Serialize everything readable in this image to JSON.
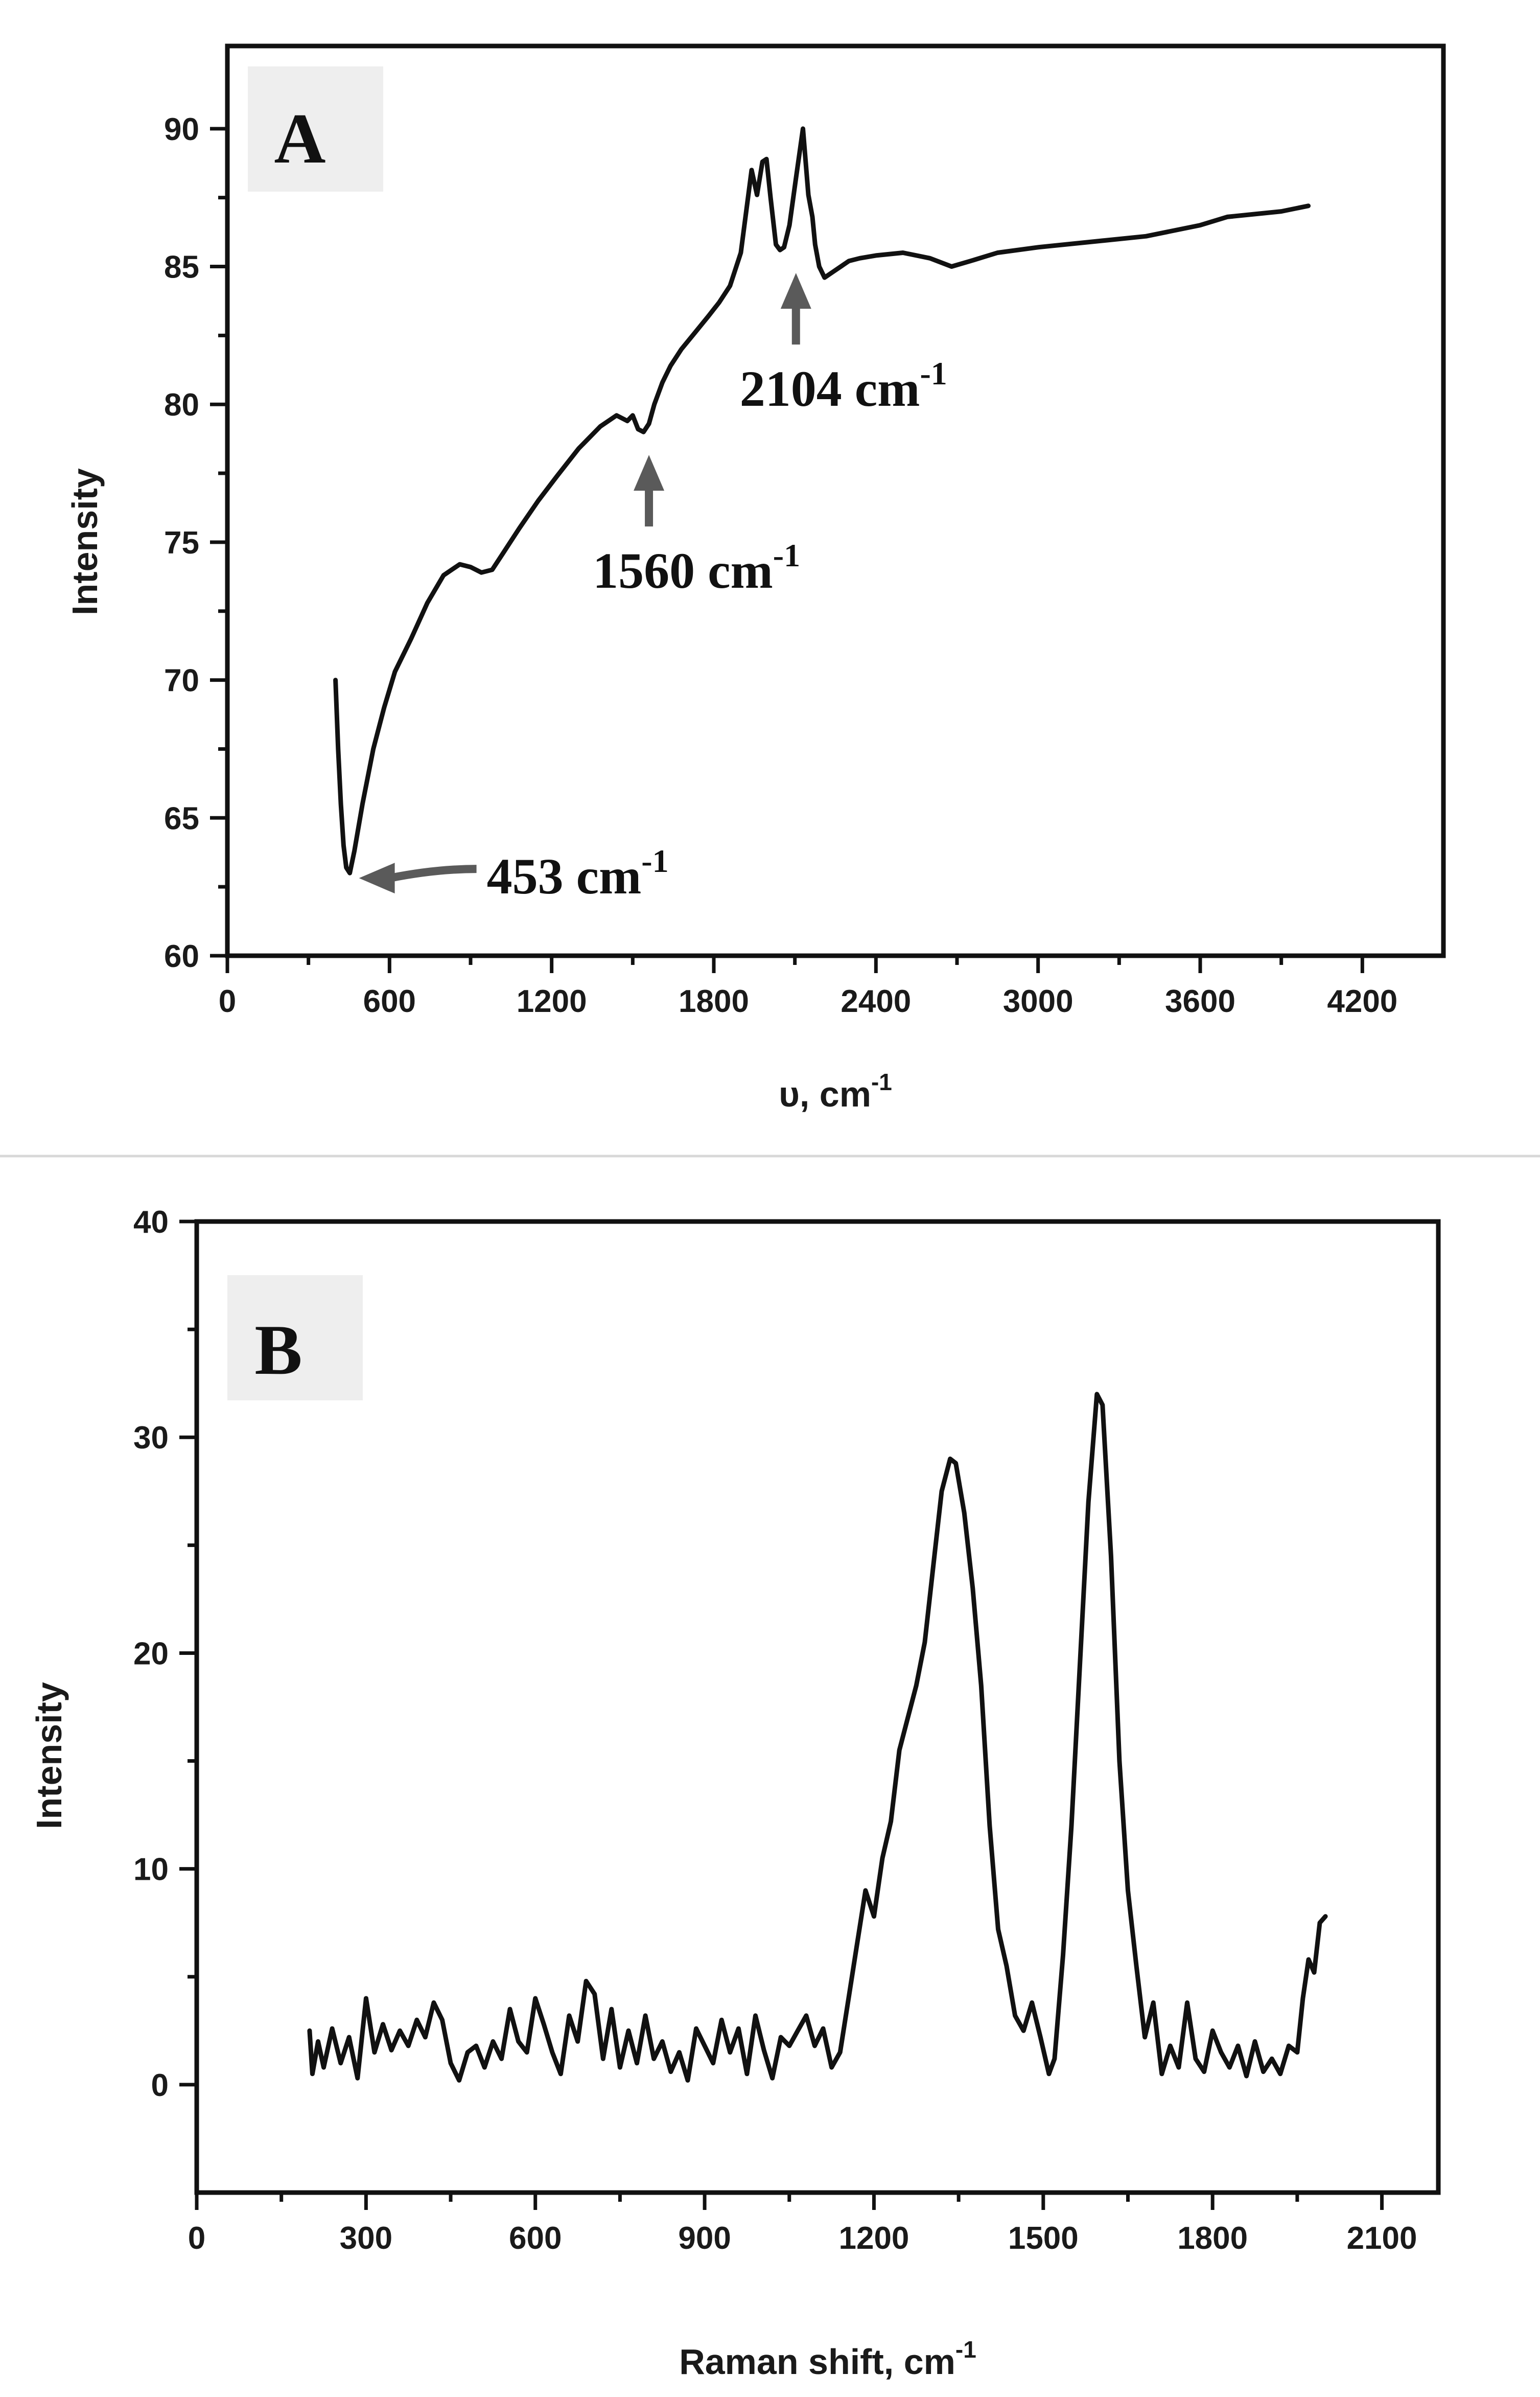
{
  "chart_data": [
    {
      "panel": "A",
      "type": "line",
      "xlabel": "υ, cm",
      "xlabel_sup": "-1",
      "ylabel": "Intensity",
      "xlim": [
        0,
        4500
      ],
      "ylim": [
        60,
        93
      ],
      "xticks": [
        0,
        600,
        1200,
        1800,
        2400,
        3000,
        3600,
        4200
      ],
      "yticks": [
        60,
        65,
        70,
        75,
        80,
        85,
        90
      ],
      "grid": false,
      "x": [
        400,
        410,
        420,
        430,
        440,
        453,
        470,
        500,
        540,
        580,
        620,
        680,
        740,
        800,
        860,
        900,
        940,
        980,
        1020,
        1080,
        1150,
        1220,
        1300,
        1380,
        1440,
        1480,
        1500,
        1520,
        1540,
        1560,
        1580,
        1610,
        1640,
        1680,
        1730,
        1780,
        1820,
        1860,
        1900,
        1940,
        1960,
        1980,
        1995,
        2010,
        2030,
        2045,
        2060,
        2080,
        2104,
        2130,
        2150,
        2165,
        2175,
        2190,
        2210,
        2240,
        2270,
        2300,
        2340,
        2400,
        2500,
        2600,
        2680,
        2750,
        2850,
        3000,
        3200,
        3400,
        3600,
        3700,
        3800,
        3900,
        4000
      ],
      "y": [
        70.0,
        67.5,
        65.5,
        64.0,
        63.2,
        63.0,
        63.8,
        65.5,
        67.5,
        69.0,
        70.3,
        71.5,
        72.8,
        73.8,
        74.2,
        74.1,
        73.9,
        74.0,
        74.6,
        75.5,
        76.5,
        77.4,
        78.4,
        79.2,
        79.6,
        79.4,
        79.6,
        79.1,
        79.0,
        79.3,
        80.0,
        80.8,
        81.4,
        82.0,
        82.6,
        83.2,
        83.7,
        84.3,
        85.5,
        88.5,
        87.6,
        88.8,
        88.9,
        87.5,
        85.8,
        85.6,
        85.7,
        86.5,
        88.2,
        90.0,
        87.6,
        86.8,
        85.8,
        85.0,
        84.6,
        84.8,
        85.0,
        85.2,
        85.3,
        85.4,
        85.5,
        85.3,
        85.0,
        85.2,
        85.5,
        85.7,
        85.9,
        86.1,
        86.5,
        86.8,
        86.9,
        87.0,
        87.2
      ],
      "annotations": [
        {
          "text": "453 cm",
          "sup": "-1",
          "x": 453,
          "y": 63
        },
        {
          "text": "1560 cm",
          "sup": "-1",
          "x": 1560,
          "y": 79
        },
        {
          "text": "2104 cm",
          "sup": "-1",
          "x": 2104,
          "y": 85.6
        }
      ]
    },
    {
      "panel": "B",
      "type": "line",
      "xlabel": "Raman shift, cm",
      "xlabel_sup": "-1",
      "ylabel": "Intensity",
      "xlim": [
        0,
        2200
      ],
      "ylim": [
        -5,
        40
      ],
      "xticks": [
        0,
        300,
        600,
        900,
        1200,
        1500,
        1800,
        2100
      ],
      "yticks": [
        0,
        10,
        20,
        30,
        40
      ],
      "grid": false,
      "x": [
        200,
        205,
        215,
        225,
        240,
        255,
        270,
        285,
        300,
        315,
        330,
        345,
        360,
        375,
        390,
        405,
        420,
        435,
        450,
        465,
        480,
        495,
        510,
        525,
        540,
        555,
        570,
        585,
        600,
        615,
        630,
        645,
        660,
        675,
        690,
        705,
        720,
        735,
        750,
        765,
        780,
        795,
        810,
        825,
        840,
        855,
        870,
        885,
        900,
        915,
        930,
        945,
        960,
        975,
        990,
        1005,
        1020,
        1035,
        1050,
        1065,
        1080,
        1095,
        1110,
        1125,
        1140,
        1155,
        1170,
        1185,
        1200,
        1215,
        1230,
        1245,
        1260,
        1275,
        1290,
        1305,
        1320,
        1335,
        1345,
        1360,
        1375,
        1390,
        1405,
        1420,
        1435,
        1450,
        1465,
        1480,
        1495,
        1510,
        1520,
        1535,
        1550,
        1565,
        1580,
        1595,
        1605,
        1620,
        1635,
        1650,
        1665,
        1680,
        1695,
        1710,
        1725,
        1740,
        1755,
        1770,
        1785,
        1800,
        1815,
        1830,
        1845,
        1860,
        1875,
        1890,
        1905,
        1920,
        1935,
        1950,
        1960,
        1970,
        1980,
        1990,
        2000
      ],
      "y": [
        2.5,
        0.5,
        2.0,
        0.8,
        2.6,
        1.0,
        2.2,
        0.3,
        4.0,
        1.5,
        2.8,
        1.6,
        2.5,
        1.8,
        3.0,
        2.2,
        3.8,
        3.0,
        1.0,
        0.2,
        1.5,
        1.8,
        0.8,
        2.0,
        1.2,
        3.5,
        2.0,
        1.5,
        4.0,
        2.8,
        1.5,
        0.5,
        3.2,
        2.0,
        4.8,
        4.2,
        1.2,
        3.5,
        0.8,
        2.5,
        1.0,
        3.2,
        1.2,
        2.0,
        0.6,
        1.5,
        0.2,
        2.6,
        1.8,
        1.0,
        3.0,
        1.5,
        2.6,
        0.5,
        3.2,
        1.6,
        0.3,
        2.2,
        1.8,
        2.5,
        3.2,
        1.8,
        2.6,
        0.8,
        1.5,
        4.0,
        6.5,
        9.0,
        7.8,
        10.5,
        12.2,
        15.5,
        17.0,
        18.5,
        20.5,
        24.0,
        27.5,
        29.0,
        28.8,
        26.5,
        23.0,
        18.5,
        12.0,
        7.2,
        5.5,
        3.2,
        2.5,
        3.8,
        2.2,
        0.5,
        1.2,
        6.0,
        12.0,
        19.5,
        27.0,
        32.0,
        31.5,
        24.5,
        15.0,
        9.0,
        5.5,
        2.2,
        3.8,
        0.5,
        1.8,
        0.8,
        3.8,
        1.2,
        0.6,
        2.5,
        1.5,
        0.8,
        1.8,
        0.4,
        2.0,
        0.6,
        1.2,
        0.5,
        1.8,
        1.5,
        4.0,
        5.8,
        5.2,
        7.5,
        7.8
      ]
    }
  ]
}
